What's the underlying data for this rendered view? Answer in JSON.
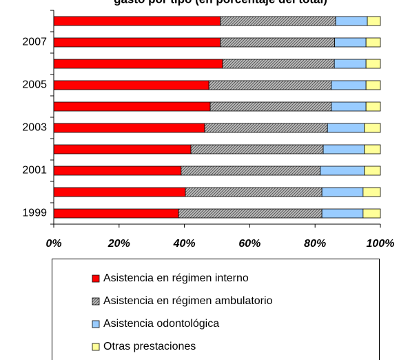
{
  "chart_data": {
    "type": "stacked-barh",
    "title": "gasto por tipo (en porcentaje del total)",
    "categories": [
      "1999",
      null,
      "2001",
      null,
      "2003",
      null,
      "2005",
      null,
      "2007",
      null
    ],
    "series": [
      {
        "name": "Asistencia en régimen interno",
        "color": "#ff0000",
        "values": [
          38.2,
          40.3,
          39,
          42,
          46.2,
          47.9,
          47.5,
          51.7,
          51,
          51
        ]
      },
      {
        "name": "Asistencia en régimen ambulatorio",
        "color": "#c0c0c0",
        "hatch": true,
        "values": [
          43.9,
          41.8,
          42.6,
          40.5,
          37.6,
          37.1,
          37.5,
          34.2,
          35,
          35.3
        ]
      },
      {
        "name": "Asistencia odontológica",
        "color": "#99ccff",
        "values": [
          12.6,
          12.6,
          13.5,
          12.6,
          11.3,
          10.6,
          10.6,
          9.7,
          9.6,
          9.7
        ]
      },
      {
        "name": "Otras prestaciones",
        "color": "#ffff99",
        "values": [
          5.3,
          5.3,
          4.9,
          4.9,
          4.9,
          4.4,
          4.4,
          4.4,
          4.4,
          4
        ]
      }
    ],
    "xlim": [
      0,
      100
    ],
    "xticks": [
      {
        "value": 0,
        "label": "0%"
      },
      {
        "value": 20,
        "label": "20%"
      },
      {
        "value": 40,
        "label": "40%"
      },
      {
        "value": 60,
        "label": "60%"
      },
      {
        "value": 80,
        "label": "80%"
      },
      {
        "value": 100,
        "label": "100%"
      }
    ],
    "legend": "bottom"
  }
}
